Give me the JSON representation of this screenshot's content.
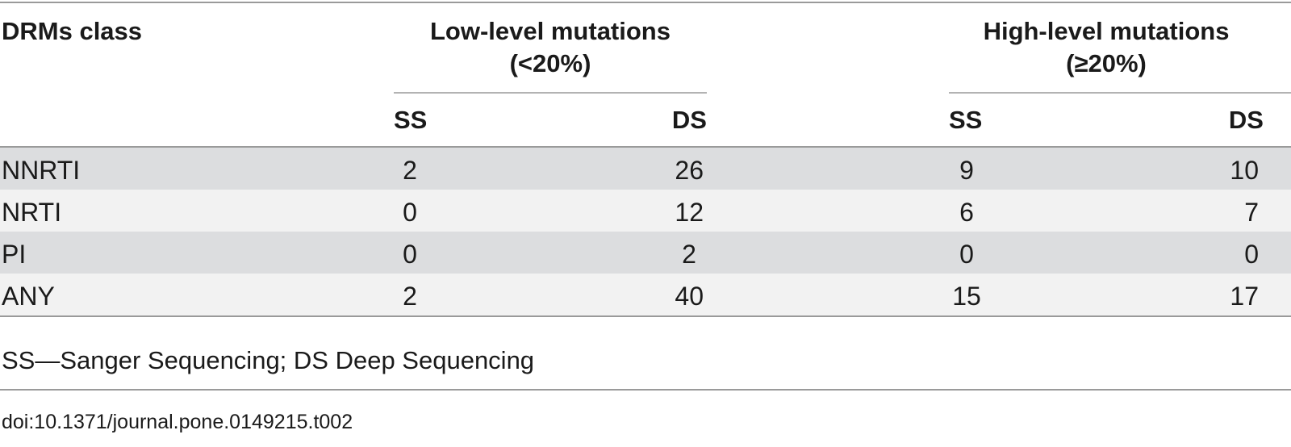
{
  "table": {
    "header": {
      "class_label": "DRMs class",
      "low_group_line1": "Low-level mutations",
      "low_group_line2": "(<20%)",
      "high_group_line1": "High-level mutations",
      "high_group_line2": "(≥20%)",
      "low_ss": "SS",
      "low_ds": "DS",
      "high_ss": "SS",
      "high_ds": "DS"
    },
    "rows": [
      {
        "label": "NNRTI",
        "low_ss": "2",
        "low_ds": "26",
        "high_ss": "9",
        "high_ds": "10"
      },
      {
        "label": "NRTI",
        "low_ss": "0",
        "low_ds": "12",
        "high_ss": "6",
        "high_ds": "7"
      },
      {
        "label": "PI",
        "low_ss": "0",
        "low_ds": "2",
        "high_ss": "0",
        "high_ds": "0"
      },
      {
        "label": "ANY",
        "low_ss": "2",
        "low_ds": "40",
        "high_ss": "15",
        "high_ds": "17"
      }
    ],
    "row_colors": [
      "#dcdddf",
      "#f2f2f2",
      "#dcdddf",
      "#f2f2f2"
    ]
  },
  "footnote": "SS—Sanger Sequencing; DS Deep Sequencing",
  "doi": "doi:10.1371/journal.pone.0149215.t002"
}
